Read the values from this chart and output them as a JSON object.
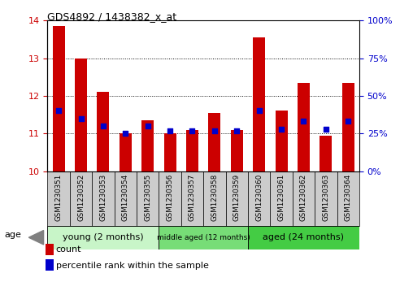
{
  "title": "GDS4892 / 1438382_x_at",
  "samples": [
    "GSM1230351",
    "GSM1230352",
    "GSM1230353",
    "GSM1230354",
    "GSM1230355",
    "GSM1230356",
    "GSM1230357",
    "GSM1230358",
    "GSM1230359",
    "GSM1230360",
    "GSM1230361",
    "GSM1230362",
    "GSM1230363",
    "GSM1230364"
  ],
  "count_values": [
    13.85,
    13.0,
    12.1,
    11.0,
    11.35,
    11.0,
    11.1,
    11.55,
    11.1,
    13.55,
    11.6,
    12.35,
    10.95,
    12.35
  ],
  "percentile_values": [
    40,
    35,
    30,
    25,
    30,
    27,
    27,
    27,
    27,
    40,
    28,
    33,
    28,
    33
  ],
  "ylim_left": [
    10,
    14
  ],
  "ylim_right": [
    0,
    100
  ],
  "yticks_left": [
    10,
    11,
    12,
    13,
    14
  ],
  "yticks_right": [
    0,
    25,
    50,
    75,
    100
  ],
  "ytick_labels_right": [
    "0%",
    "25%",
    "50%",
    "75%",
    "100%"
  ],
  "bar_color": "#cc0000",
  "dot_color": "#0000cc",
  "bar_bottom": 10,
  "groups": [
    {
      "label": "young (2 months)",
      "indices": [
        0,
        1,
        2,
        3,
        4
      ],
      "color": "#c8f5c8"
    },
    {
      "label": "middle aged (12 months)",
      "indices": [
        5,
        6,
        7,
        8
      ],
      "color": "#77dd77"
    },
    {
      "label": "aged (24 months)",
      "indices": [
        9,
        10,
        11,
        12,
        13
      ],
      "color": "#44cc44"
    }
  ],
  "legend_count_label": "count",
  "legend_pct_label": "percentile rank within the sample",
  "age_label": "age",
  "bg_color": "#ffffff",
  "tick_label_color_left": "#cc0000",
  "tick_label_color_right": "#0000cc",
  "tickbox_color": "#cccccc"
}
